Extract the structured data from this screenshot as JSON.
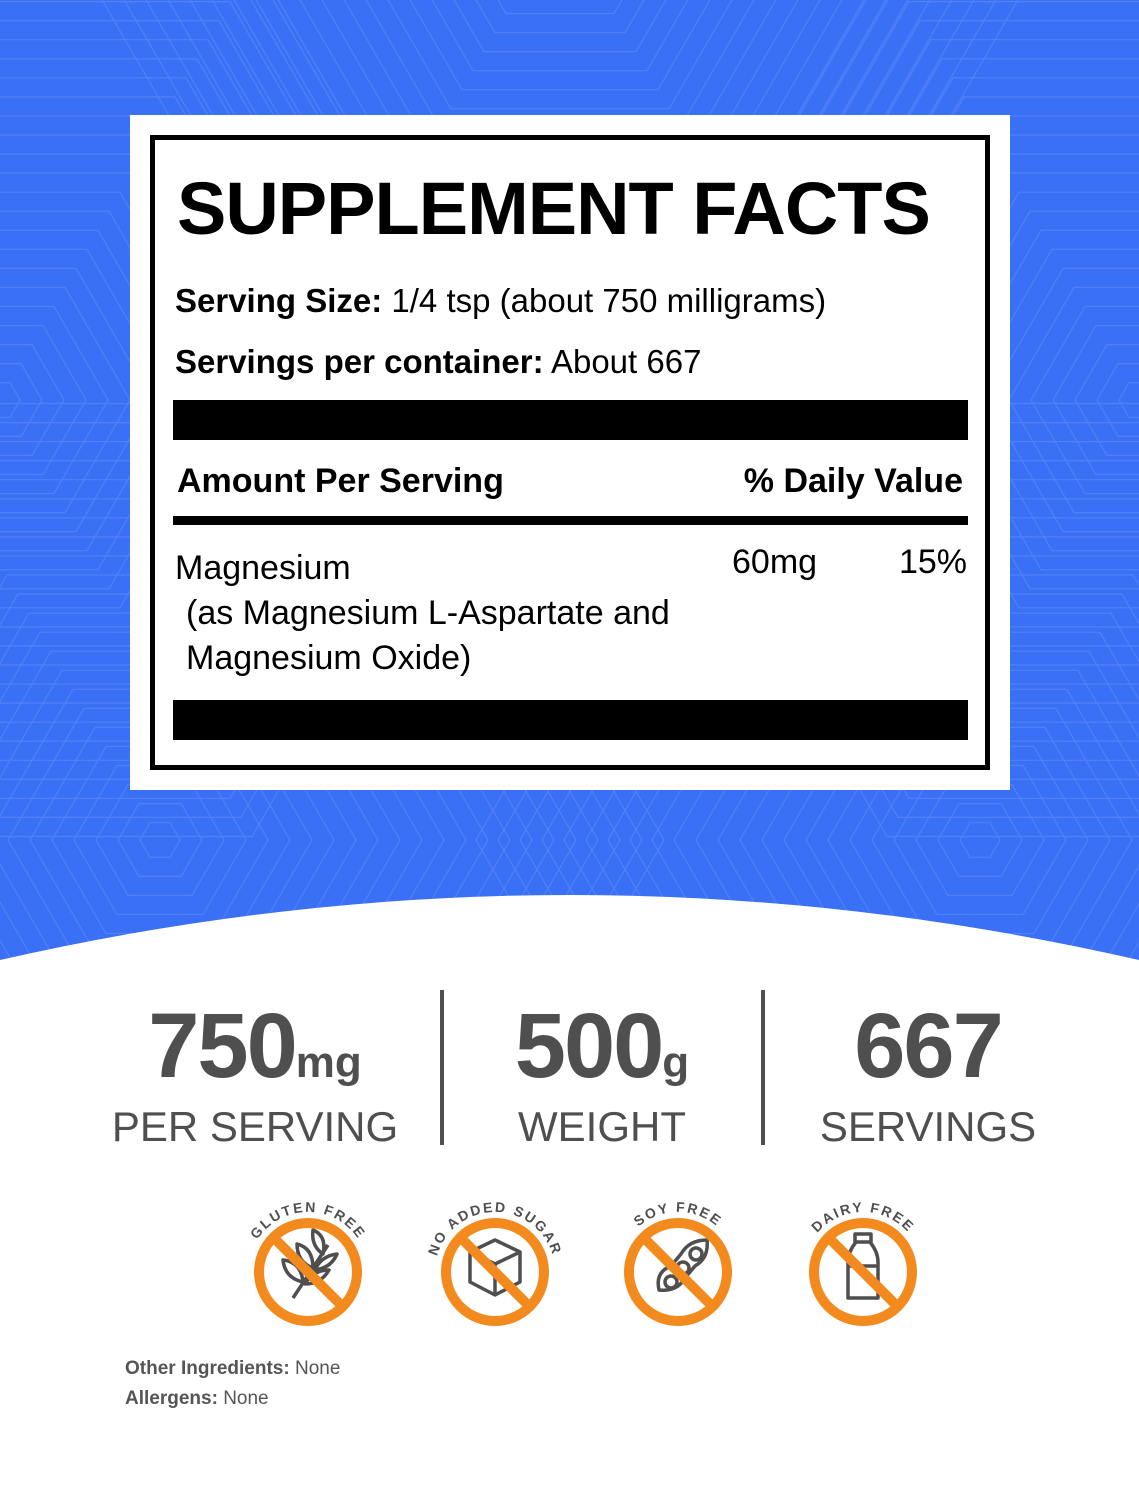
{
  "label": {
    "title": "SUPPLEMENT FACTS",
    "serving_size_label": "Serving Size:",
    "serving_size_value": "1/4 tsp (about 750 milligrams)",
    "servings_label": "Servings per container:",
    "servings_value": "About 667",
    "amount_header": "Amount Per Serving",
    "dv_header": "% Daily Value",
    "ingredients": [
      {
        "name": "Magnesium",
        "detail_line1": "(as Magnesium L-Aspartate and",
        "detail_line2": "Magnesium Oxide)",
        "amount": "60mg",
        "dv": "15%"
      }
    ]
  },
  "stats": [
    {
      "value": "750",
      "unit": "mg",
      "label": "PER SERVING"
    },
    {
      "value": "500",
      "unit": "g",
      "label": "WEIGHT"
    },
    {
      "value": "667",
      "unit": "",
      "label": "SERVINGS"
    }
  ],
  "badges": [
    {
      "text": "GLUTEN FREE",
      "icon": "wheat-icon"
    },
    {
      "text": "NO ADDED SUGAR",
      "icon": "sugar-cube-icon"
    },
    {
      "text": "SOY FREE",
      "icon": "soybean-icon"
    },
    {
      "text": "DAIRY FREE",
      "icon": "milk-bottle-icon"
    }
  ],
  "footer": {
    "other_label": "Other Ingredients:",
    "other_value": "None",
    "allergens_label": "Allergens:",
    "allergens_value": "None"
  },
  "colors": {
    "background": "#3a70f6",
    "badge": "#f28a1e",
    "text_gray": "#4f4f4f"
  }
}
